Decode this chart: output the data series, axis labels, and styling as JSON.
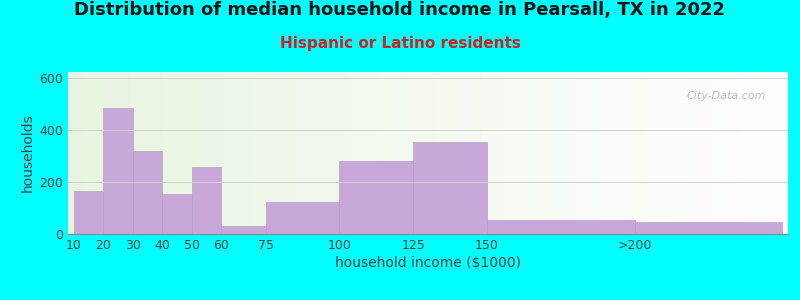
{
  "title": "Distribution of median household income in Pearsall, TX in 2022",
  "subtitle": "Hispanic or Latino residents",
  "xlabel": "household income ($1000)",
  "ylabel": "households",
  "background_outer": "#00FFFF",
  "bar_color": "#C8A8D8",
  "bar_edge_color": "#b8a0cc",
  "categories": [
    "10",
    "20",
    "30",
    "40",
    "50",
    "60",
    "75",
    "100",
    "125",
    "150",
    ">200"
  ],
  "values": [
    165,
    485,
    320,
    155,
    260,
    30,
    125,
    280,
    355,
    55,
    45
  ],
  "bin_widths": [
    10,
    10,
    10,
    10,
    10,
    15,
    25,
    25,
    25,
    50,
    50
  ],
  "bin_lefts": [
    10,
    20,
    30,
    40,
    50,
    60,
    75,
    100,
    125,
    150,
    200
  ],
  "ylim": [
    0,
    625
  ],
  "yticks": [
    0,
    200,
    400,
    600
  ],
  "watermark": "City-Data.com",
  "title_fontsize": 13,
  "subtitle_fontsize": 11,
  "axis_label_fontsize": 10,
  "tick_fontsize": 9
}
